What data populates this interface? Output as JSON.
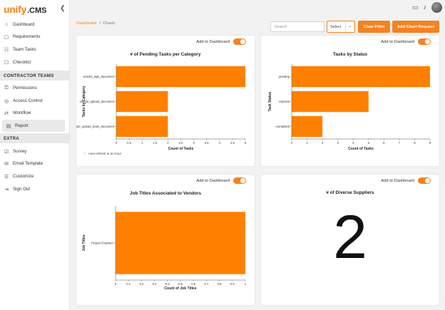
{
  "app": {
    "logo_main": "unify",
    "logo_sub": ".CMS"
  },
  "sidebar": {
    "collapse_icon": "chevron-left-icon",
    "items_top": [
      {
        "label": "Dashboard",
        "icon": "home-icon",
        "glyph": "⌂"
      },
      {
        "label": "Requirements",
        "icon": "document-icon",
        "glyph": "▢"
      },
      {
        "label": "Team Tasks",
        "icon": "users-icon",
        "glyph": "☷"
      },
      {
        "label": "Checklist",
        "icon": "checklist-icon",
        "glyph": "☐"
      }
    ],
    "section_contractor": "CONTRACTOR TEAMS",
    "items_contractor": [
      {
        "label": "Permissions",
        "icon": "key-icon",
        "glyph": "⚿"
      },
      {
        "label": "Access Control",
        "icon": "shield-icon",
        "glyph": "◎"
      },
      {
        "label": "Workflow",
        "icon": "workflow-icon",
        "glyph": "⇄"
      },
      {
        "label": "Report",
        "icon": "report-icon",
        "glyph": "▤"
      }
    ],
    "section_extra": "EXTRA",
    "items_extra": [
      {
        "label": "Survey",
        "icon": "survey-icon",
        "glyph": "☑"
      },
      {
        "label": "Email Template",
        "icon": "email-template-icon",
        "glyph": "✉"
      },
      {
        "label": "Customize",
        "icon": "customize-icon",
        "glyph": "☰"
      },
      {
        "label": "Sign Out",
        "icon": "sign-out-icon",
        "glyph": "⇥"
      }
    ],
    "active": "Report"
  },
  "topbar": {
    "icons": [
      "monitor-icon",
      "bell-icon",
      "avatar"
    ]
  },
  "breadcrumb": {
    "link": "Dashboard",
    "separator": "/",
    "current": "Charts"
  },
  "toolbar": {
    "search_placeholder": "Search",
    "select_value": "Select",
    "clear_filter": "Clear Filter",
    "add_chart_request": "Add Chart Request"
  },
  "cards": {
    "add_to_dashboard": "Add to Dashboard",
    "refresh_text": "next refresh in an hour",
    "kpi_title": "# of Diverse Suppliers",
    "kpi_value": "2"
  },
  "colors": {
    "accent": "#f58220",
    "bar": "#ff8000"
  },
  "chart_data": [
    {
      "type": "bar",
      "orientation": "horizontal",
      "title": "# of Pending Tasks per Category",
      "xlabel": "Count of Tasks",
      "ylabel": "Tasks by Category",
      "categories": [
        "vendor_sign_document",
        "vendor_upload_document",
        "vendor_upload_team_document"
      ],
      "values": [
        5,
        2,
        2
      ],
      "xlim": [
        0,
        5
      ],
      "xticks": [
        "0",
        "0.5",
        "1",
        "1.5",
        "2",
        "2.5",
        "3",
        "3.5",
        "4",
        "4.5",
        "5"
      ]
    },
    {
      "type": "bar",
      "orientation": "horizontal",
      "title": "Tasks by Status",
      "xlabel": "Count of Tasks",
      "ylabel": "Task Status",
      "categories": [
        "pending",
        "rejected",
        "completed"
      ],
      "values": [
        9,
        5,
        2
      ],
      "xlim": [
        0,
        9
      ],
      "xticks": [
        "0",
        "1",
        "2",
        "3",
        "4",
        "5",
        "6",
        "7",
        "8",
        "9"
      ]
    },
    {
      "type": "bar",
      "orientation": "horizontal",
      "title": "Job Titles Associated to Vendors",
      "xlabel": "Count of Job Titles",
      "ylabel": "Job Titles",
      "categories": [
        "Project Engineer"
      ],
      "values": [
        1
      ],
      "xlim": [
        0,
        1
      ],
      "xticks": [
        "0",
        "0.1",
        "0.2",
        "0.3",
        "0.4",
        "0.5",
        "0.6",
        "0.7",
        "0.8",
        "0.9",
        "1"
      ]
    }
  ]
}
